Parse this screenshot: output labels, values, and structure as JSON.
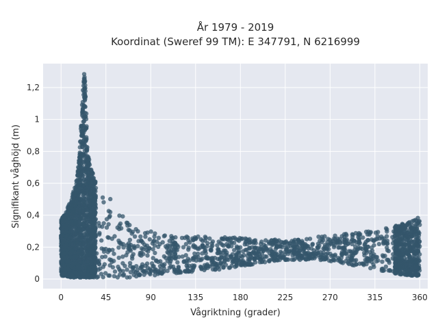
{
  "chart_data": {
    "type": "scatter",
    "title_line1": "År 1979 - 2019",
    "title_line2": "Koordinat (Sweref 99 TM): E 347791, N 6216999",
    "xlabel": "Vågriktning (grader)",
    "ylabel": "Signifikant våghöjd (m)",
    "xlim": [
      -18,
      368
    ],
    "ylim": [
      -0.06,
      1.35
    ],
    "x_ticks": [
      0,
      45,
      90,
      135,
      180,
      225,
      270,
      315,
      360
    ],
    "x_tick_labels": [
      "0",
      "45",
      "90",
      "135",
      "180",
      "225",
      "270",
      "315",
      "360"
    ],
    "y_ticks": [
      0,
      0.2,
      0.4,
      0.6,
      0.8,
      1.0,
      1.2
    ],
    "y_tick_labels": [
      "0",
      "0,2",
      "0,4",
      "0,6",
      "0,8",
      "1",
      "1,2"
    ],
    "grid": true,
    "marker_color": "#34566b",
    "marker_opacity": 0.75,
    "envelope": {
      "direction_deg": [
        0,
        5,
        10,
        15,
        18,
        20,
        22,
        23,
        24,
        25,
        27,
        30,
        35,
        40,
        45,
        50,
        55,
        60,
        70,
        80,
        90,
        100,
        120,
        140,
        160,
        180,
        200,
        220,
        240,
        260,
        280,
        300,
        320,
        340,
        355,
        360
      ],
      "upper_height_m": [
        0.37,
        0.42,
        0.5,
        0.6,
        0.75,
        0.95,
        1.2,
        1.29,
        1.28,
        1.1,
        0.8,
        0.7,
        0.6,
        0.56,
        0.53,
        0.5,
        0.45,
        0.42,
        0.35,
        0.3,
        0.3,
        0.28,
        0.27,
        0.27,
        0.27,
        0.26,
        0.24,
        0.25,
        0.26,
        0.27,
        0.28,
        0.29,
        0.31,
        0.34,
        0.37,
        0.4
      ],
      "lower_height_m": [
        0.02,
        0.02,
        0.01,
        0.01,
        0.01,
        0.01,
        0.01,
        0.01,
        0.01,
        0.01,
        0.01,
        0.01,
        0.01,
        0.01,
        0.01,
        0.01,
        0.01,
        0.01,
        0.01,
        0.02,
        0.02,
        0.03,
        0.04,
        0.05,
        0.06,
        0.08,
        0.1,
        0.12,
        0.12,
        0.12,
        0.1,
        0.08,
        0.05,
        0.03,
        0.02,
        0.02
      ]
    }
  }
}
